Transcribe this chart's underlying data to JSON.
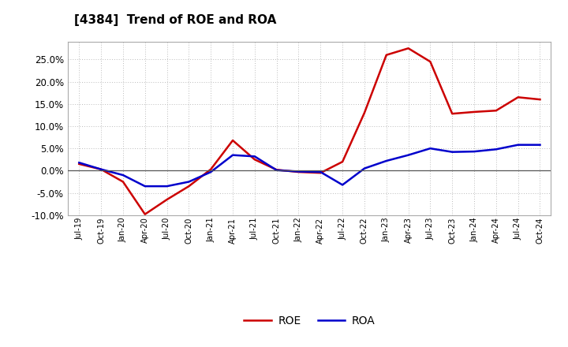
{
  "title": "[4384]  Trend of ROE and ROA",
  "title_fontsize": 11,
  "background_color": "#ffffff",
  "plot_background": "#ffffff",
  "grid_color": "#bbbbbb",
  "x_labels": [
    "Jul-19",
    "Oct-19",
    "Jan-20",
    "Apr-20",
    "Jul-20",
    "Oct-20",
    "Jan-21",
    "Apr-21",
    "Jul-21",
    "Oct-21",
    "Jan-22",
    "Apr-22",
    "Jul-22",
    "Oct-22",
    "Jan-23",
    "Apr-23",
    "Jul-23",
    "Oct-23",
    "Jan-24",
    "Apr-24",
    "Jul-24",
    "Oct-24"
  ],
  "ROE": [
    1.5,
    0.3,
    -2.5,
    -9.8,
    -6.5,
    -3.5,
    0.3,
    6.8,
    2.5,
    0.2,
    -0.3,
    -0.5,
    2.0,
    13.0,
    26.0,
    27.5,
    24.5,
    12.8,
    13.2,
    13.5,
    16.5,
    16.0
  ],
  "ROA": [
    1.8,
    0.3,
    -1.0,
    -3.5,
    -3.5,
    -2.5,
    -0.3,
    3.5,
    3.2,
    0.1,
    -0.2,
    -0.3,
    -3.2,
    0.5,
    2.2,
    3.5,
    5.0,
    4.2,
    4.3,
    4.8,
    5.8,
    5.8
  ],
  "ROE_color": "#cc0000",
  "ROA_color": "#0000cc",
  "ylim": [
    -10.0,
    29.0
  ],
  "yticks": [
    -10.0,
    -5.0,
    0.0,
    5.0,
    10.0,
    15.0,
    20.0,
    25.0
  ],
  "legend_ROE": "ROE",
  "legend_ROA": "ROA",
  "line_width": 1.8
}
